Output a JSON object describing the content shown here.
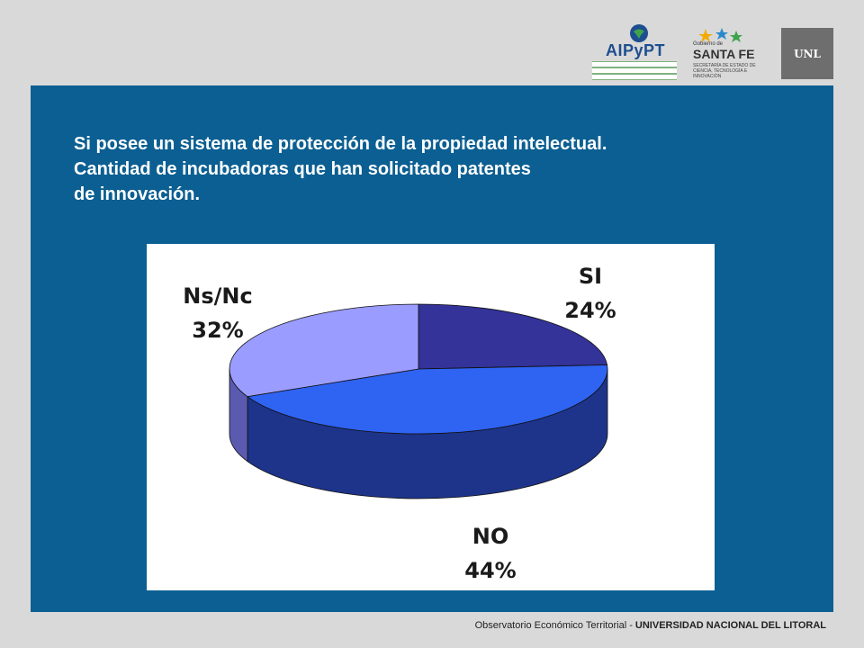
{
  "logos": {
    "aipypt": {
      "name": "AIPyPT",
      "lines": [
        "ASOCIACIÓN DE INCUBADORAS DE EMPRESAS",
        "PARQUES Y POLOS TECNOLÓGICOS",
        "DE LA REPÚBLICA ARGENTINA"
      ]
    },
    "santafe": {
      "gobierno": "Gobierno de",
      "name": "SANTA FE",
      "subtitle": "SECRETARÍA DE ESTADO DE CIENCIA, TECNOLOGÍA E INNOVACIÓN"
    },
    "unl": "UNL"
  },
  "slide": {
    "title_lines": [
      "Si posee un sistema de protección de la propiedad intelectual.",
      "Cantidad de incubadoras que han solicitado patentes",
      "de innovación."
    ]
  },
  "chart_data": {
    "type": "pie",
    "style": "3d",
    "title": "",
    "categories": [
      "SI",
      "NO",
      "Ns/Nc"
    ],
    "values": [
      24,
      44,
      32
    ],
    "labels": [
      "24%",
      "44%",
      "32%"
    ],
    "colors": [
      "#33339a",
      "#2f63f2",
      "#9b9cff"
    ],
    "side_colors": [
      "#212176",
      "#1d348a",
      "#5a5ab0"
    ],
    "legend": "none"
  },
  "footer": {
    "prefix": "Observatorio Económico Territorial - ",
    "university": "UNIVERSIDAD NACIONAL DEL LITORAL"
  }
}
